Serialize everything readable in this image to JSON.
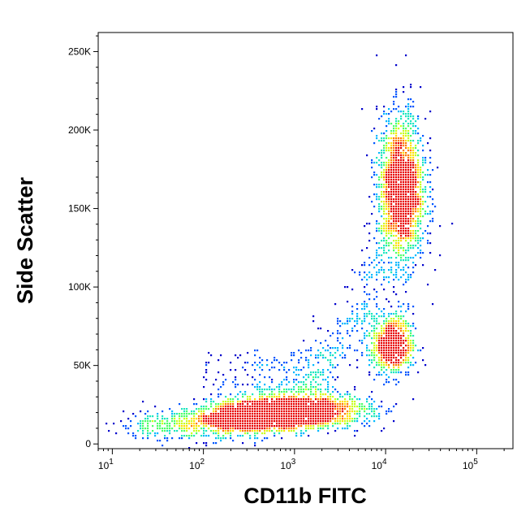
{
  "chart_data": {
    "type": "scatter",
    "style": "density-colored flow cytometry dot plot",
    "xlabel": "CD11b FITC",
    "ylabel": "Side Scatter",
    "x_scale": "log",
    "xlim": [
      7,
      250000
    ],
    "x_ticks": [
      {
        "value": 10,
        "base": "10",
        "exp": "1"
      },
      {
        "value": 100,
        "base": "10",
        "exp": "2"
      },
      {
        "value": 1000,
        "base": "10",
        "exp": "3"
      },
      {
        "value": 10000,
        "base": "10",
        "exp": "4"
      },
      {
        "value": 100000,
        "base": "10",
        "exp": "5"
      }
    ],
    "y_scale": "linear",
    "ylim": [
      -3000,
      262144
    ],
    "y_ticks": [
      {
        "value": 0,
        "label": "0"
      },
      {
        "value": 50000,
        "label": "50K"
      },
      {
        "value": 100000,
        "label": "100K"
      },
      {
        "value": 150000,
        "label": "150K"
      },
      {
        "value": 200000,
        "label": "200K"
      },
      {
        "value": 250000,
        "label": "250K"
      }
    ],
    "grid": false,
    "density_colors": [
      "#0000cc",
      "#0055ff",
      "#00b8ff",
      "#1fe6c0",
      "#4cff6a",
      "#c8ff1e",
      "#ffe000",
      "#ff7a00",
      "#e80000"
    ],
    "populations": [
      {
        "x_center": 350,
        "y_center": 17000,
        "x_spread_decades": 0.3,
        "y_spread": 5000,
        "weight": 0.22
      },
      {
        "x_center": 1400,
        "y_center": 21000,
        "x_spread_decades": 0.35,
        "y_spread": 5500,
        "weight": 0.2
      },
      {
        "x_center": 12000,
        "y_center": 63000,
        "x_spread_decades": 0.12,
        "y_spread": 10000,
        "weight": 0.12
      },
      {
        "x_center": 15000,
        "y_center": 162000,
        "x_spread_decades": 0.13,
        "y_spread": 24000,
        "weight": 0.3
      },
      {
        "x_center": 60,
        "y_center": 12000,
        "x_spread_decades": 0.35,
        "y_spread": 5000,
        "weight": 0.06
      }
    ]
  }
}
